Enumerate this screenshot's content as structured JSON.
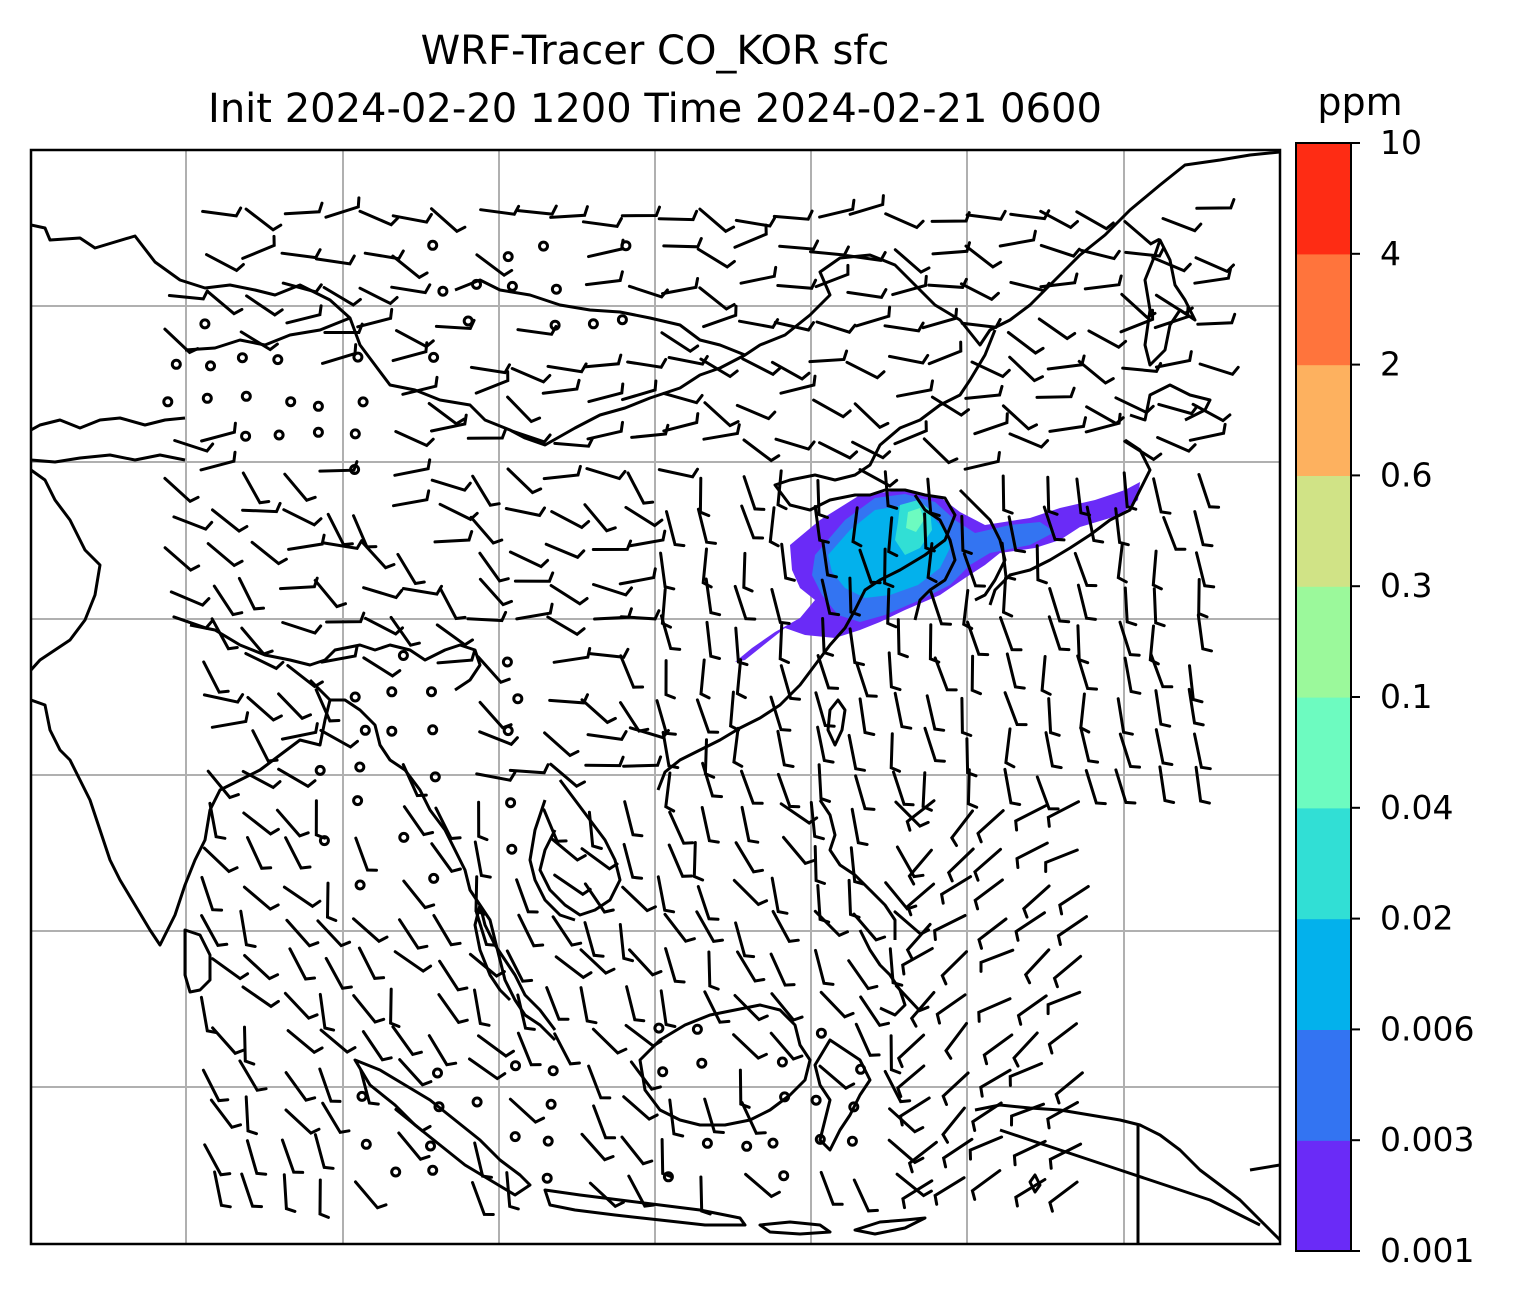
{
  "title": {
    "line1": "WRF-Tracer CO_KOR sfc",
    "line2": "Init 2024-02-20 1200 Time 2024-02-21 0600"
  },
  "colorbar": {
    "units": "ppm",
    "levels": [
      "0.001",
      "0.003",
      "0.006",
      "0.02",
      "0.04",
      "0.1",
      "0.3",
      "0.6",
      "2",
      "4",
      "10"
    ],
    "colors": [
      "#6a2bf7",
      "#3374f2",
      "#03b1ec",
      "#31dfd5",
      "#6dfbc0",
      "#9bf99b",
      "#d0e386",
      "#fdb15f",
      "#ff743c",
      "#fe2c14"
    ]
  },
  "map": {
    "gridlines": true,
    "grid_color": "#b0b0b0",
    "coastline_color": "#000000",
    "wind_barbs": true,
    "tracer_plume_region": "Korea / East China Sea"
  }
}
